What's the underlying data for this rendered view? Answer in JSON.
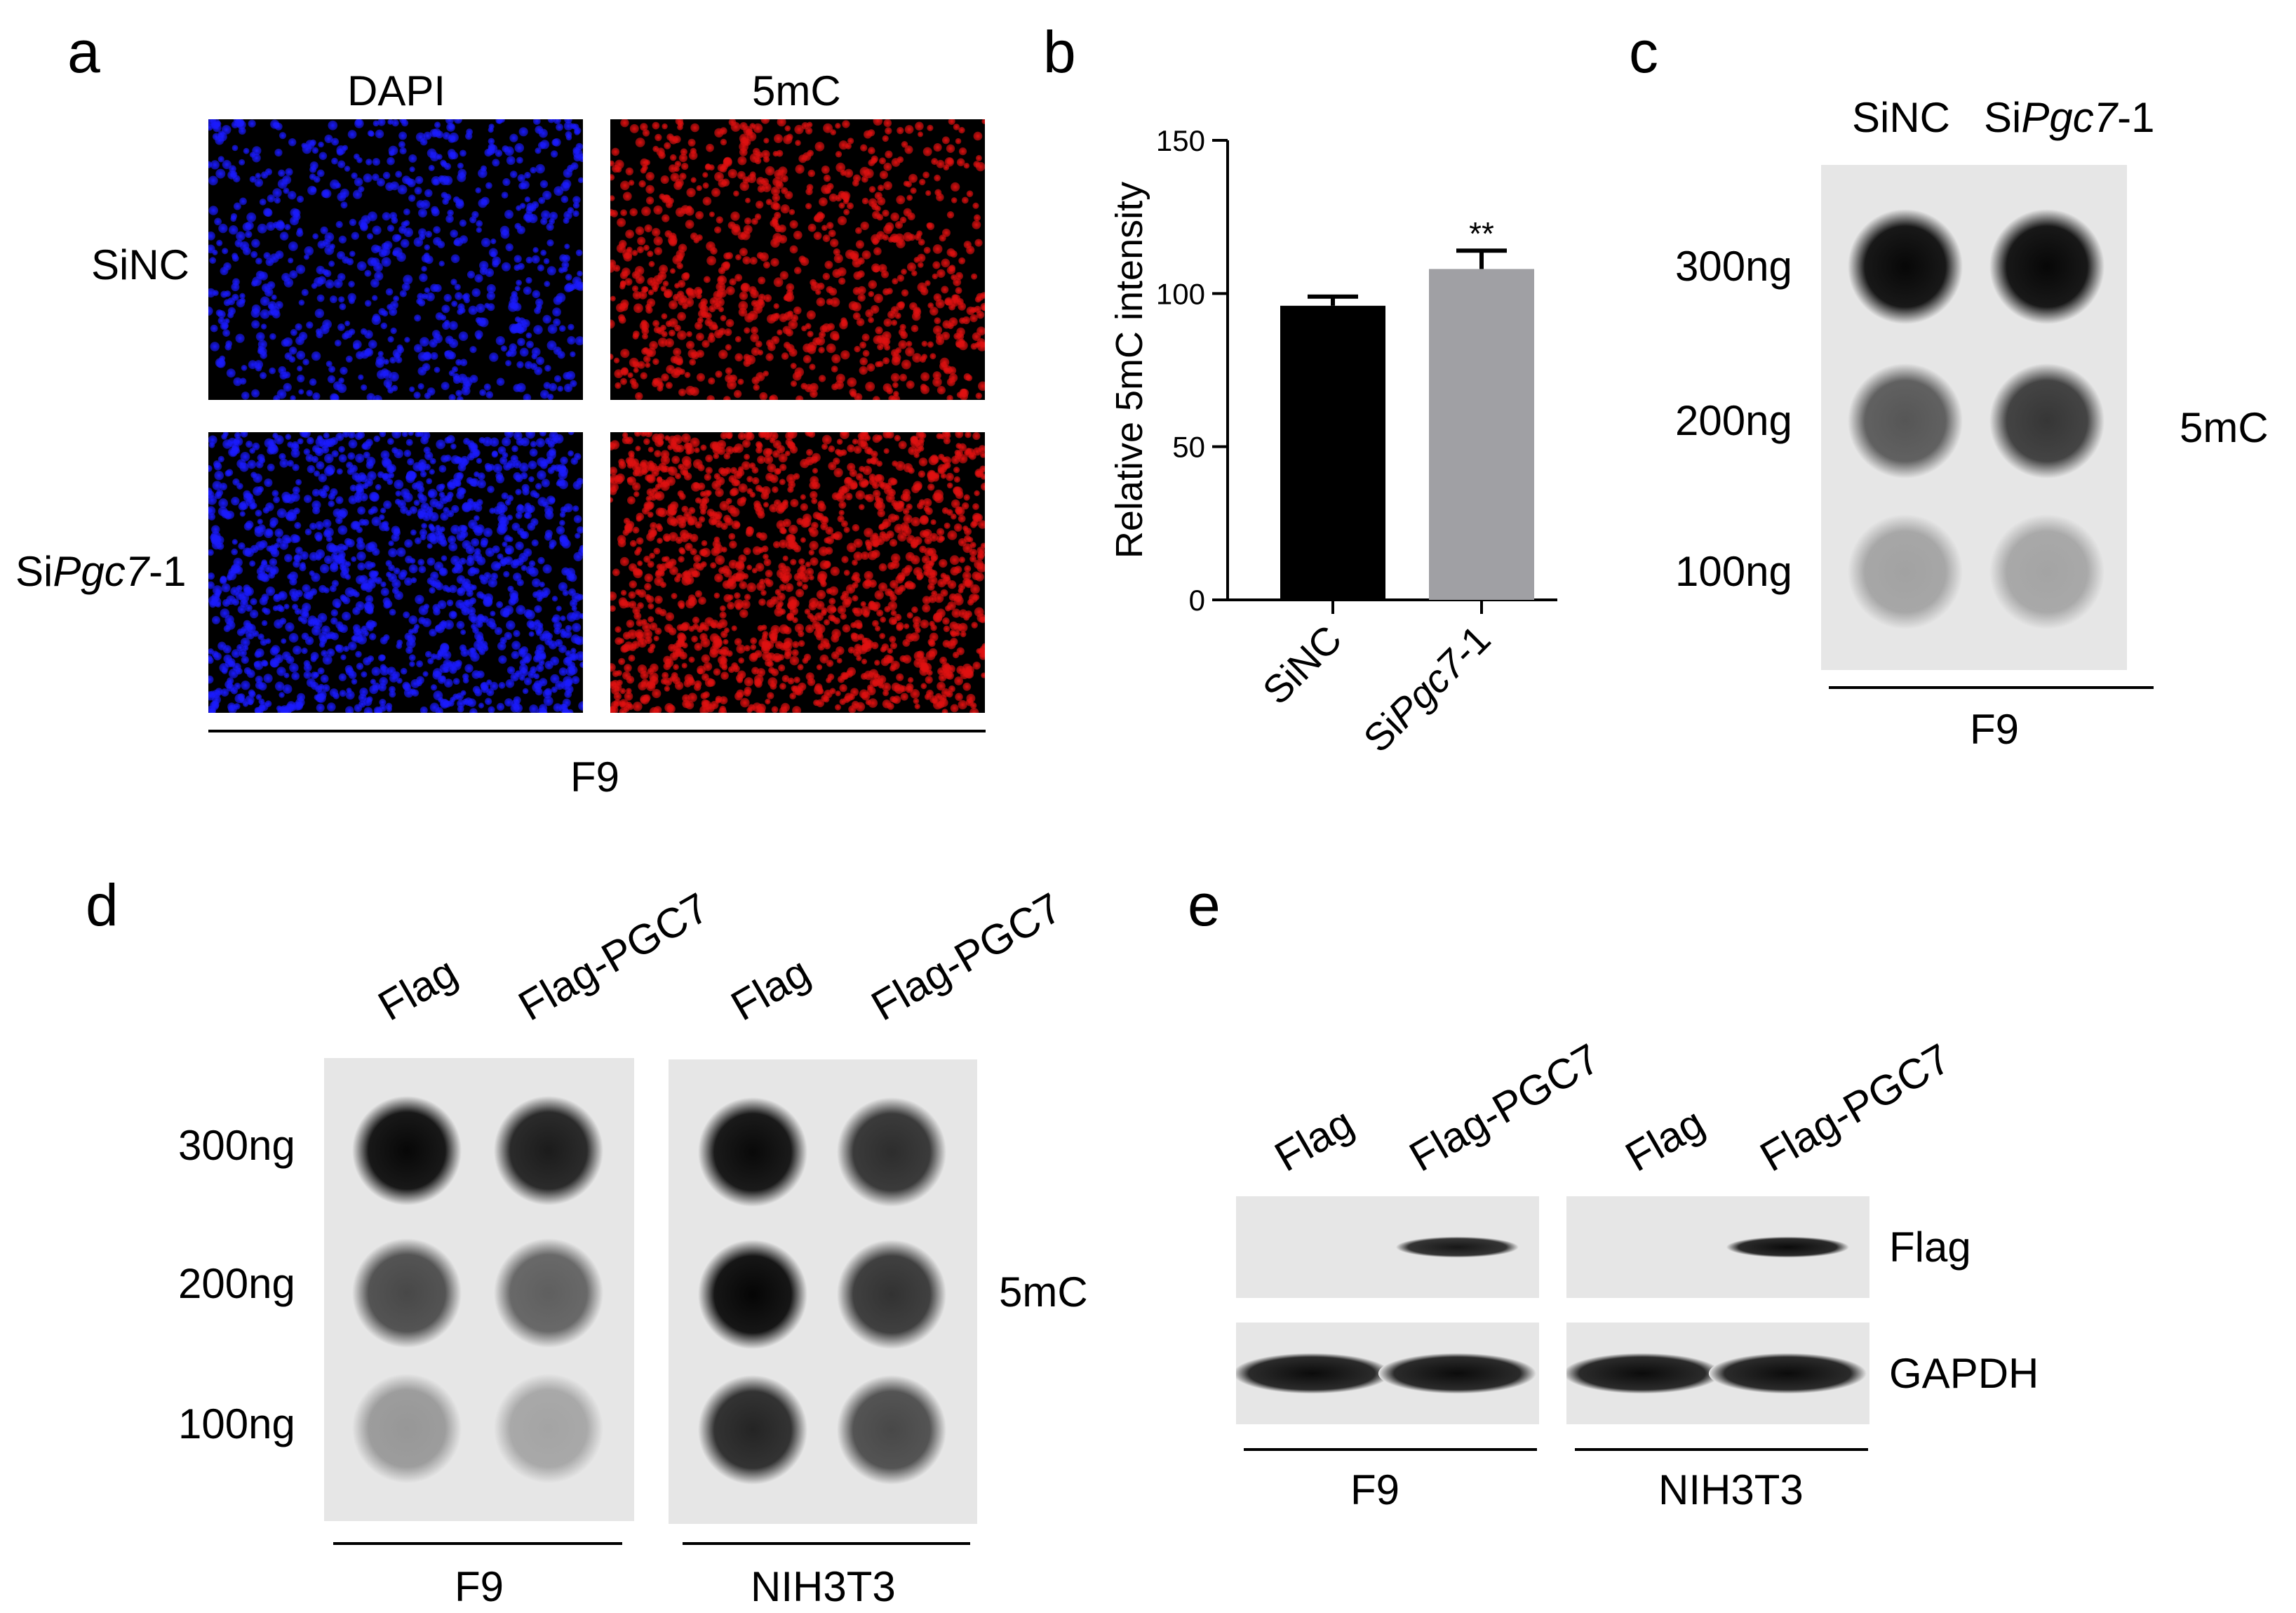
{
  "panels": {
    "a": {
      "letter": "a",
      "columns": [
        "DAPI",
        "5mC"
      ],
      "rows": [
        {
          "parts": [
            {
              "text": "SiNC",
              "italic": false
            }
          ]
        },
        {
          "parts": [
            {
              "text": "Si",
              "italic": false
            },
            {
              "text": "Pgc7",
              "italic": true
            },
            {
              "text": "-1",
              "italic": false
            }
          ]
        }
      ],
      "cell_line": "F9"
    },
    "b": {
      "letter": "b"
    },
    "c": {
      "letter": "c",
      "columns": [
        {
          "parts": [
            {
              "text": "SiNC",
              "italic": false
            }
          ]
        },
        {
          "parts": [
            {
              "text": "Si",
              "italic": false
            },
            {
              "text": "Pgc7",
              "italic": true
            },
            {
              "text": "-1",
              "italic": false
            }
          ]
        }
      ],
      "rows": [
        "300ng",
        "200ng",
        "100ng"
      ],
      "side_label": "5mC",
      "cell_line": "F9"
    },
    "d": {
      "letter": "d",
      "columns": [
        "Flag",
        "Flag-PGC7",
        "Flag",
        "Flag-PGC7"
      ],
      "rows": [
        "300ng",
        "200ng",
        "100ng"
      ],
      "side_label": "5mC",
      "cell_lines": [
        "F9",
        "NIH3T3"
      ]
    },
    "e": {
      "letter": "e",
      "columns": [
        "Flag",
        "Flag-PGC7",
        "Flag",
        "Flag-PGC7"
      ],
      "bands": [
        "Flag",
        "GAPDH"
      ],
      "cell_lines": [
        "F9",
        "NIH3T3"
      ]
    }
  },
  "chart_data": {
    "type": "bar",
    "title": "",
    "ylabel": "Relative 5mC intensity",
    "xlabel": "",
    "ylim": [
      0,
      150
    ],
    "yticks": [
      0,
      50,
      100,
      150
    ],
    "categories": [
      {
        "parts": [
          {
            "text": "SiNC",
            "italic": false
          }
        ]
      },
      {
        "parts": [
          {
            "text": "Si",
            "italic": false
          },
          {
            "text": "Pgc7",
            "italic": true
          },
          {
            "text": "-1",
            "italic": false
          }
        ]
      }
    ],
    "values": [
      96,
      108
    ],
    "errors": [
      3,
      6
    ],
    "colors": [
      "#000000",
      "#a0a0a4"
    ],
    "significance": [
      "",
      "**"
    ]
  },
  "blots": {
    "c_intensity": [
      [
        0.97,
        0.97
      ],
      [
        0.62,
        0.76
      ],
      [
        0.28,
        0.27
      ]
    ],
    "d_f9_intensity": [
      [
        0.97,
        0.88
      ],
      [
        0.68,
        0.58
      ],
      [
        0.33,
        0.27
      ]
    ],
    "d_nih_intensity": [
      [
        0.96,
        0.8
      ],
      [
        0.98,
        0.78
      ],
      [
        0.84,
        0.68
      ]
    ],
    "e_flag_intensity": [
      0.0,
      0.9,
      0.0,
      0.95
    ],
    "e_gapdh_intensity": [
      0.95,
      0.95,
      0.95,
      0.95
    ]
  },
  "colors": {
    "dapi": "#1a1aff",
    "mc5": "#e01010",
    "blot_bg": "#e6e6e6"
  }
}
